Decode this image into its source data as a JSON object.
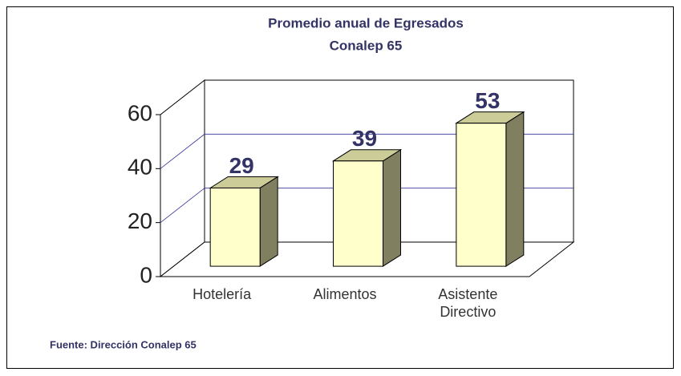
{
  "chart_data": {
    "type": "bar3d",
    "title": "Promedio anual de  Egresados",
    "subtitle": "Conalep 65",
    "categories": [
      "Hotelería",
      "Alimentos",
      "Asistente Directivo"
    ],
    "values": [
      29,
      39,
      53
    ],
    "color": "#ffffcc",
    "ylim": [
      0,
      60
    ],
    "yticks": [
      0,
      20,
      40,
      60
    ],
    "grid": true,
    "source": "Fuente: Dirección Conalep 65"
  }
}
